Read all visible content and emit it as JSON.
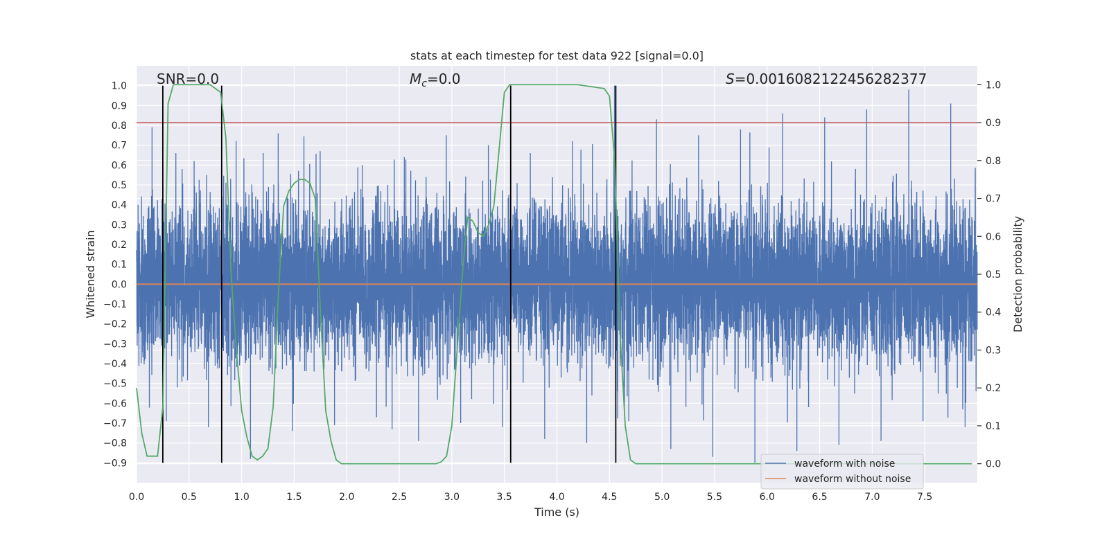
{
  "chart_data": {
    "type": "line",
    "title": "stats at each timestep for test data 922 [signal=0.0]",
    "xlabel": "Time (s)",
    "ylabel": "Whitened strain",
    "y2label": "Detection probability",
    "xlim": [
      0.0,
      8.0
    ],
    "ylim": [
      -1.0,
      1.1
    ],
    "y2lim": [
      -0.05,
      1.05
    ],
    "x_ticks": [
      "0.0",
      "0.5",
      "1.0",
      "1.5",
      "2.0",
      "2.5",
      "3.0",
      "3.5",
      "4.0",
      "4.5",
      "5.0",
      "5.5",
      "6.0",
      "6.5",
      "7.0",
      "7.5"
    ],
    "y_ticks": [
      "−0.9",
      "−0.8",
      "−0.7",
      "−0.6",
      "−0.5",
      "−0.4",
      "−0.3",
      "−0.2",
      "−0.1",
      "0.0",
      "0.1",
      "0.2",
      "0.3",
      "0.4",
      "0.5",
      "0.6",
      "0.7",
      "0.8",
      "0.9",
      "1.0"
    ],
    "y2_ticks": [
      "0.0",
      "0.1",
      "0.2",
      "0.3",
      "0.4",
      "0.5",
      "0.6",
      "0.7",
      "0.8",
      "0.9",
      "1.0"
    ],
    "grid": true,
    "legend_placement": "lower-right",
    "annotations": {
      "snr": "SNR=0.0",
      "mc_symbol": "M",
      "mc_sub": "c",
      "mc_value": "=0.0",
      "s_symbol": "S",
      "s_value": "=0.0016082122456282377"
    },
    "threshold_y2": 0.9,
    "vertical_lines_x": [
      0.25,
      0.81,
      3.56,
      4.56
    ],
    "vertical_line_range_y": [
      -0.9,
      1.0
    ],
    "series": [
      {
        "name": "waveform with noise",
        "color": "#4c72b0",
        "axis": "left",
        "samples": 8192,
        "sigma": 0.2,
        "spike_max": [
          0.79,
          0.62,
          0.72,
          0.76,
          0.67,
          0.6,
          0.64,
          0.75,
          0.7,
          0.66,
          0.72,
          1.0,
          0.83,
          0.75,
          0.78,
          0.86,
          0.84,
          0.88,
          0.98,
          0.91
        ],
        "spike_min": [
          -0.69,
          -0.72,
          -0.88,
          -0.74,
          -0.71,
          -0.67,
          -0.79,
          -0.7,
          -0.72,
          -0.78,
          -0.8,
          -0.69,
          -0.83,
          -0.87,
          -0.9,
          -0.84,
          -0.81,
          -0.79,
          -0.69,
          -0.72
        ]
      },
      {
        "name": "waveform without noise",
        "color": "#dd8452",
        "axis": "left",
        "x": [
          0.0,
          8.0
        ],
        "y": [
          0.0,
          0.0
        ]
      },
      {
        "name": "",
        "color": "#55a868",
        "axis": "right",
        "x": [
          0.0,
          0.05,
          0.1,
          0.15,
          0.2,
          0.25,
          0.3,
          0.35,
          0.4,
          0.5,
          0.6,
          0.7,
          0.75,
          0.8,
          0.85,
          0.9,
          0.95,
          1.0,
          1.05,
          1.1,
          1.15,
          1.2,
          1.25,
          1.3,
          1.35,
          1.4,
          1.45,
          1.5,
          1.55,
          1.6,
          1.65,
          1.7,
          1.75,
          1.8,
          1.85,
          1.9,
          1.95,
          2.0,
          2.05,
          2.1,
          2.5,
          2.85,
          2.9,
          2.95,
          3.0,
          3.05,
          3.1,
          3.15,
          3.2,
          3.25,
          3.3,
          3.35,
          3.4,
          3.45,
          3.5,
          3.55,
          3.6,
          3.65,
          3.7,
          3.8,
          4.2,
          4.45,
          4.5,
          4.55,
          4.6,
          4.65,
          4.7,
          4.75,
          4.8,
          4.85,
          4.9,
          5.0,
          6.0,
          7.95
        ],
        "y": [
          0.2,
          0.08,
          0.02,
          0.02,
          0.02,
          0.15,
          0.95,
          1.0,
          1.0,
          1.0,
          1.0,
          1.0,
          0.99,
          0.98,
          0.86,
          0.5,
          0.3,
          0.14,
          0.07,
          0.02,
          0.01,
          0.02,
          0.04,
          0.15,
          0.45,
          0.68,
          0.72,
          0.74,
          0.75,
          0.75,
          0.74,
          0.7,
          0.4,
          0.14,
          0.06,
          0.01,
          0.0,
          0.0,
          0.0,
          0.0,
          0.0,
          0.0,
          0.005,
          0.02,
          0.1,
          0.3,
          0.5,
          0.65,
          0.64,
          0.61,
          0.6,
          0.63,
          0.68,
          0.83,
          0.98,
          1.0,
          1.0,
          1.0,
          1.0,
          1.0,
          1.0,
          0.99,
          0.97,
          0.8,
          0.35,
          0.1,
          0.01,
          0.0,
          0.0,
          0.0,
          0.0,
          0.0,
          0.0,
          0.0
        ]
      }
    ]
  }
}
